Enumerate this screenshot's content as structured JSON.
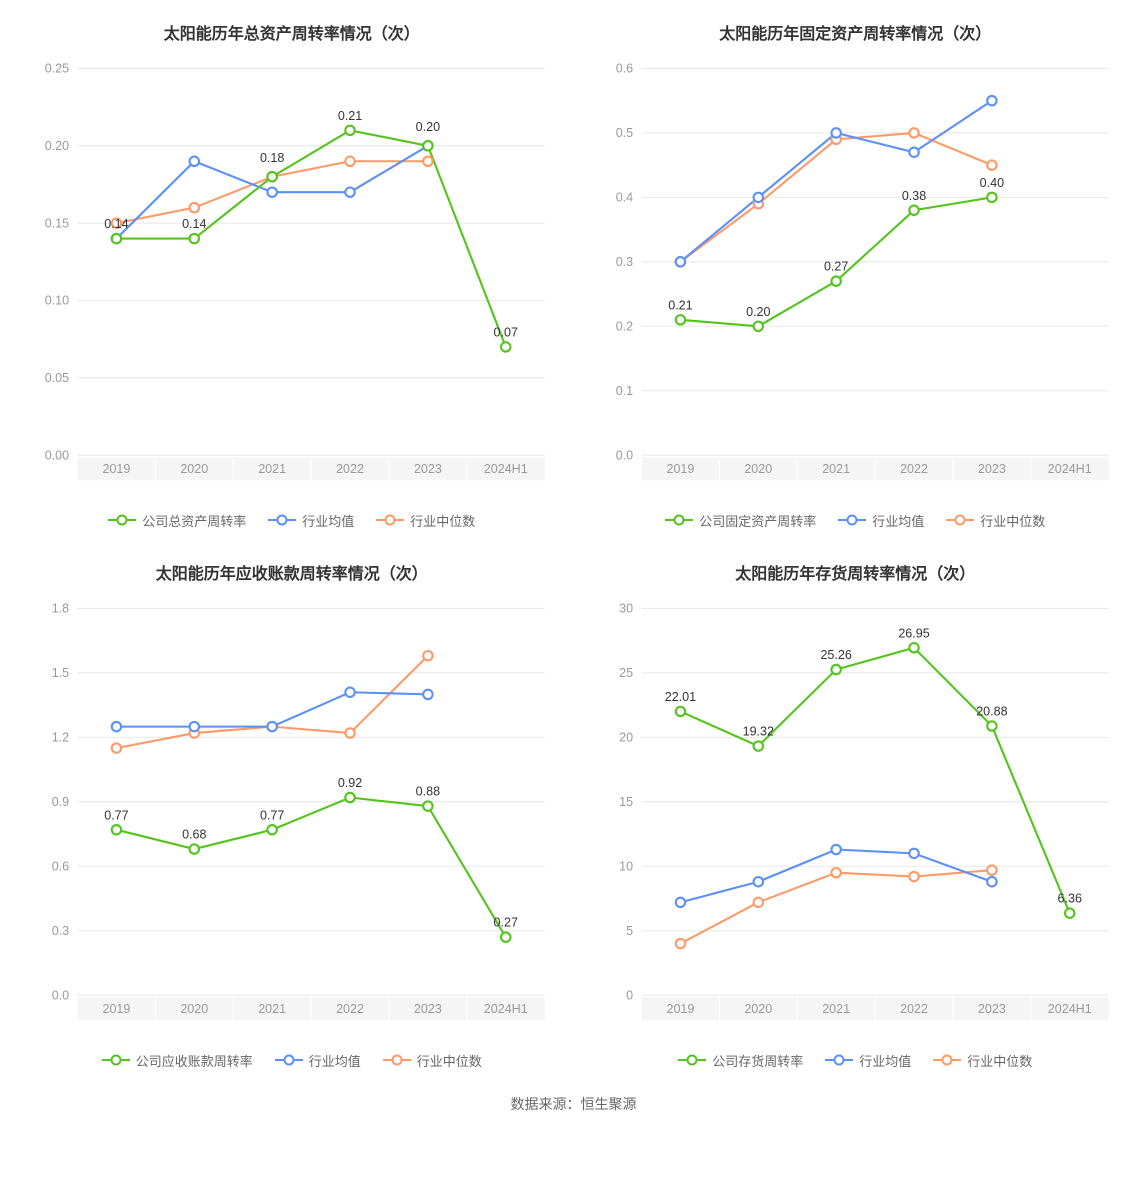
{
  "colors": {
    "company": "#52c41a",
    "industry_mean": "#5b8ff9",
    "industry_median": "#ff9966",
    "axis_text": "#999999",
    "grid": "#e8e8e8",
    "xband": "#f5f5f5",
    "label_text": "#333333",
    "bg": "#ffffff"
  },
  "line_width": 2,
  "marker_radius": 4.5,
  "marker_fill": "#ffffff",
  "title_fontsize": 16,
  "axis_fontsize": 12,
  "label_fontsize": 12,
  "footer": "数据来源：恒生聚源",
  "categories": [
    "2019",
    "2020",
    "2021",
    "2022",
    "2023",
    "2024H1"
  ],
  "charts": [
    {
      "title": "太阳能历年总资产周转率情况（次）",
      "ylim": [
        0,
        0.25
      ],
      "ytick_step": 0.05,
      "y_decimals": 2,
      "legend_company": "公司总资产周转率",
      "series": {
        "company": [
          0.14,
          0.14,
          0.18,
          0.21,
          0.2,
          0.07
        ],
        "industry_mean": [
          0.14,
          0.19,
          0.17,
          0.17,
          0.2,
          null
        ],
        "industry_median": [
          0.15,
          0.16,
          0.18,
          0.19,
          0.19,
          null
        ]
      },
      "data_labels": [
        {
          "i": 0,
          "v": 0.14,
          "txt": "0.14",
          "dy": -10
        },
        {
          "i": 1,
          "v": 0.14,
          "txt": "0.14",
          "dy": -10
        },
        {
          "i": 2,
          "v": 0.18,
          "txt": "0.18",
          "dy": -14
        },
        {
          "i": 3,
          "v": 0.21,
          "txt": "0.21",
          "dy": -10
        },
        {
          "i": 4,
          "v": 0.2,
          "txt": "0.20",
          "dy": -14
        },
        {
          "i": 5,
          "v": 0.07,
          "txt": "0.07",
          "dy": -10
        }
      ]
    },
    {
      "title": "太阳能历年固定资产周转率情况（次）",
      "ylim": [
        0,
        0.6
      ],
      "ytick_step": 0.1,
      "y_decimals": 1,
      "legend_company": "公司固定资产周转率",
      "series": {
        "company": [
          0.21,
          0.2,
          0.27,
          0.38,
          0.4,
          null
        ],
        "industry_mean": [
          0.3,
          0.4,
          0.5,
          0.47,
          0.55,
          null
        ],
        "industry_median": [
          0.3,
          0.39,
          0.49,
          0.5,
          0.45,
          null
        ]
      },
      "data_labels": [
        {
          "i": 0,
          "v": 0.21,
          "txt": "0.21",
          "dy": -10
        },
        {
          "i": 1,
          "v": 0.2,
          "txt": "0.20",
          "dy": -10
        },
        {
          "i": 2,
          "v": 0.27,
          "txt": "0.27",
          "dy": -10
        },
        {
          "i": 3,
          "v": 0.38,
          "txt": "0.38",
          "dy": -10
        },
        {
          "i": 4,
          "v": 0.4,
          "txt": "0.40",
          "dy": -10
        }
      ]
    },
    {
      "title": "太阳能历年应收账款周转率情况（次）",
      "ylim": [
        0,
        1.8
      ],
      "ytick_step": 0.3,
      "y_decimals": 1,
      "legend_company": "公司应收账款周转率",
      "series": {
        "company": [
          0.77,
          0.68,
          0.77,
          0.92,
          0.88,
          0.27
        ],
        "industry_mean": [
          1.25,
          1.25,
          1.25,
          1.41,
          1.4,
          null
        ],
        "industry_median": [
          1.15,
          1.22,
          1.25,
          1.22,
          1.58,
          null
        ]
      },
      "data_labels": [
        {
          "i": 0,
          "v": 0.77,
          "txt": "0.77",
          "dy": -10
        },
        {
          "i": 1,
          "v": 0.68,
          "txt": "0.68",
          "dy": -10
        },
        {
          "i": 2,
          "v": 0.77,
          "txt": "0.77",
          "dy": -10
        },
        {
          "i": 3,
          "v": 0.92,
          "txt": "0.92",
          "dy": -10
        },
        {
          "i": 4,
          "v": 0.88,
          "txt": "0.88",
          "dy": -10
        },
        {
          "i": 5,
          "v": 0.27,
          "txt": "0.27",
          "dy": -10
        }
      ]
    },
    {
      "title": "太阳能历年存货周转率情况（次）",
      "ylim": [
        0,
        30
      ],
      "ytick_step": 5,
      "y_decimals": 0,
      "legend_company": "公司存货周转率",
      "series": {
        "company": [
          22.01,
          19.32,
          25.26,
          26.95,
          20.88,
          6.36
        ],
        "industry_mean": [
          7.2,
          8.8,
          11.3,
          11.0,
          8.8,
          null
        ],
        "industry_median": [
          4.0,
          7.2,
          9.5,
          9.2,
          9.7,
          null
        ]
      },
      "data_labels": [
        {
          "i": 0,
          "v": 22.01,
          "txt": "22.01",
          "dy": -10
        },
        {
          "i": 1,
          "v": 19.32,
          "txt": "19.32",
          "dy": -10
        },
        {
          "i": 2,
          "v": 25.26,
          "txt": "25.26",
          "dy": -10
        },
        {
          "i": 3,
          "v": 26.95,
          "txt": "26.95",
          "dy": -10
        },
        {
          "i": 4,
          "v": 20.88,
          "txt": "20.88",
          "dy": -10
        },
        {
          "i": 5,
          "v": 6.36,
          "txt": "6.36",
          "dy": -10
        }
      ]
    }
  ],
  "legend_mean": "行业均值",
  "legend_median": "行业中位数"
}
